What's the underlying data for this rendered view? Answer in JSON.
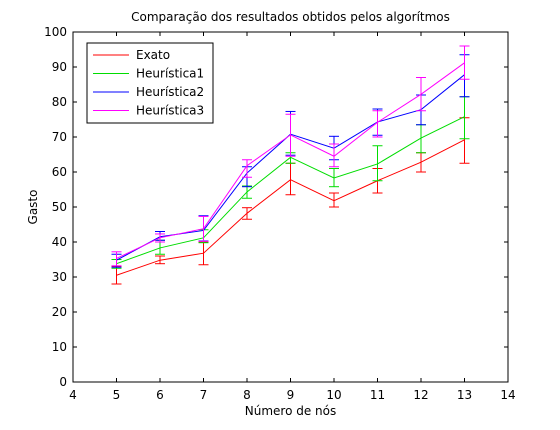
{
  "chart_data": {
    "type": "line",
    "title": "Comparação dos resultados obtidos pelos algorítmos",
    "xlabel": "Número de nós",
    "ylabel": "Gasto",
    "xlim": [
      4,
      14
    ],
    "ylim": [
      0,
      100
    ],
    "xticks": [
      4,
      5,
      6,
      7,
      8,
      9,
      10,
      11,
      12,
      13,
      14
    ],
    "yticks": [
      0,
      10,
      20,
      30,
      40,
      50,
      60,
      70,
      80,
      90,
      100
    ],
    "grid": false,
    "legend_position": "top-left",
    "x": [
      5,
      6,
      7,
      8,
      9,
      10,
      11,
      12,
      13
    ],
    "series": [
      {
        "name": "Exato",
        "color": "#ff0000",
        "values": [
          30.5,
          34.8,
          36.8,
          48.2,
          57.8,
          51.8,
          57.5,
          62.8,
          69.2
        ],
        "err_low": [
          28,
          33.8,
          33.5,
          46.5,
          53.5,
          50,
          54,
          60,
          62.5
        ],
        "err_high": [
          33,
          36,
          40,
          49.8,
          62.5,
          54,
          61,
          65.5,
          75.5
        ]
      },
      {
        "name": "Heurística1",
        "color": "#00dd00",
        "values": [
          33.8,
          38.3,
          41.2,
          54.3,
          64.2,
          58.3,
          62.3,
          69.7,
          75.8
        ],
        "err_low": [
          32.5,
          36.5,
          39.8,
          52.5,
          62.5,
          55.8,
          57.5,
          65.5,
          69.5
        ],
        "err_high": [
          35,
          40.5,
          43.5,
          56,
          65.5,
          61,
          67.5,
          73.5,
          81.5
        ]
      },
      {
        "name": "Heurística2",
        "color": "#0000ff",
        "values": [
          34.8,
          41.5,
          43.3,
          59.7,
          70.8,
          66.8,
          74.3,
          77.8,
          87.8
        ],
        "err_low": [
          32.8,
          40.5,
          40.3,
          55.8,
          64.8,
          63.5,
          70.5,
          73.5,
          81.5
        ],
        "err_high": [
          36.5,
          43,
          47.5,
          61.5,
          77.3,
          70.2,
          78,
          82,
          93.5
        ]
      },
      {
        "name": "Heurística3",
        "color": "#ff00ff",
        "values": [
          35.3,
          41.2,
          43.8,
          61.8,
          70.6,
          64.5,
          74.2,
          82.2,
          91.2
        ],
        "err_low": [
          33.2,
          40,
          40.2,
          58.5,
          64.5,
          61.5,
          70,
          77.5,
          86.5
        ],
        "err_high": [
          37.2,
          42.3,
          47.3,
          63.5,
          76.5,
          68,
          77.5,
          87,
          96
        ]
      }
    ]
  }
}
